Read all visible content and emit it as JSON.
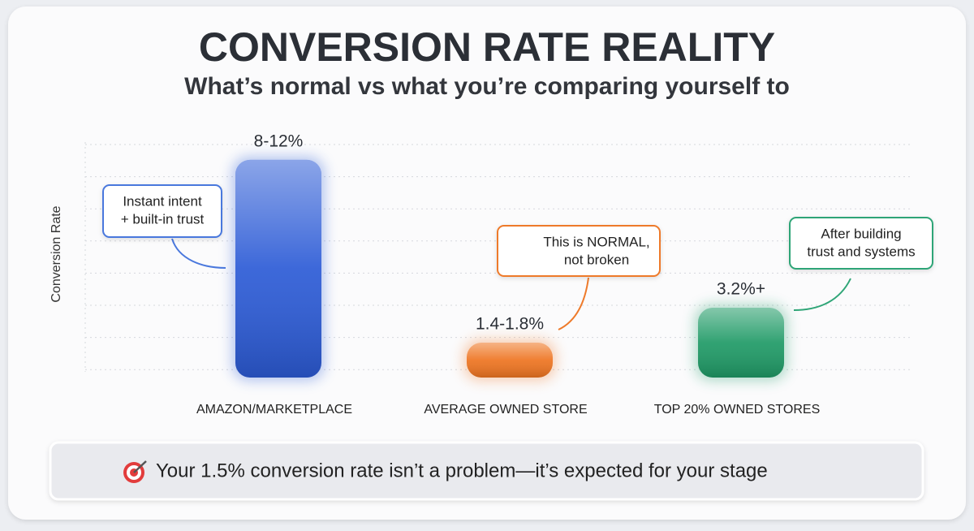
{
  "chart_data": {
    "type": "bar",
    "title": "CONVERSION RATE REALITY",
    "subtitle": "What’s normal vs what you’re comparing yourself to",
    "y_label": "Conversion Rate",
    "categories": [
      "AMAZON/MARKETPLACE",
      "AVERAGE OWNED STORE",
      "TOP 20% OWNED STORES"
    ],
    "values": [
      10,
      1.6,
      3.2
    ],
    "value_labels": [
      "8-12%",
      "1.4-1.8%",
      "3.2%+"
    ],
    "colors": [
      "#2c5bd6",
      "#ee7420",
      "#1f9a66"
    ],
    "ylim": [
      0,
      11
    ],
    "annotations": [
      {
        "lines": [
          "Instant intent",
          "+ built-in trust"
        ]
      },
      {
        "lines": [
          "This is NORMAL,",
          "not broken"
        ]
      },
      {
        "lines": [
          "After building",
          "trust and systems"
        ]
      }
    ],
    "note": "Your 1.5% conversion rate isn’t a problem—it’s expected for your stage"
  }
}
